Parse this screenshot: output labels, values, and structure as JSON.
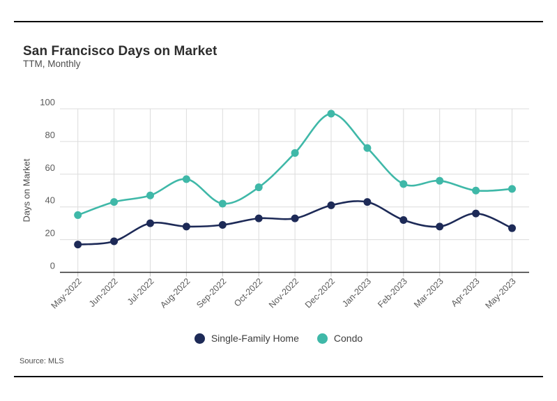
{
  "header": {
    "title": "San Francisco Days on Market",
    "subtitle": "TTM, Monthly"
  },
  "source": {
    "text": "Source: MLS"
  },
  "colors": {
    "single_family": "#1d2a57",
    "condo": "#3fb8a8",
    "gridline": "#dcdcdc",
    "baseline": "#2b2b2b",
    "tick_label": "#5a5a5a",
    "divider": "#0a0a0a"
  },
  "chart_data": {
    "type": "line",
    "title": "San Francisco Days on Market",
    "subtitle": "TTM, Monthly",
    "categories": [
      "May-2022",
      "Jun-2022",
      "Jul-2022",
      "Aug-2022",
      "Sep-2022",
      "Oct-2022",
      "Nov-2022",
      "Dec-2022",
      "Jan-2023",
      "Feb-2023",
      "Mar-2023",
      "Apr-2023",
      "May-2023"
    ],
    "series": [
      {
        "name": "Single-Family Home",
        "color": "#1d2a57",
        "values": [
          17,
          19,
          30,
          28,
          29,
          33,
          33,
          41,
          43,
          32,
          28,
          36,
          27
        ]
      },
      {
        "name": "Condo",
        "color": "#3fb8a8",
        "values": [
          35,
          43,
          47,
          57,
          42,
          52,
          73,
          97,
          76,
          54,
          56,
          50,
          51
        ]
      }
    ],
    "xlabel": "",
    "ylabel": "Days on Market",
    "yticks": [
      0,
      20,
      40,
      60,
      80,
      100
    ],
    "ylim": [
      0,
      100
    ],
    "grid": true,
    "legend_position": "bottom",
    "line_style": "smooth",
    "markers": true
  }
}
